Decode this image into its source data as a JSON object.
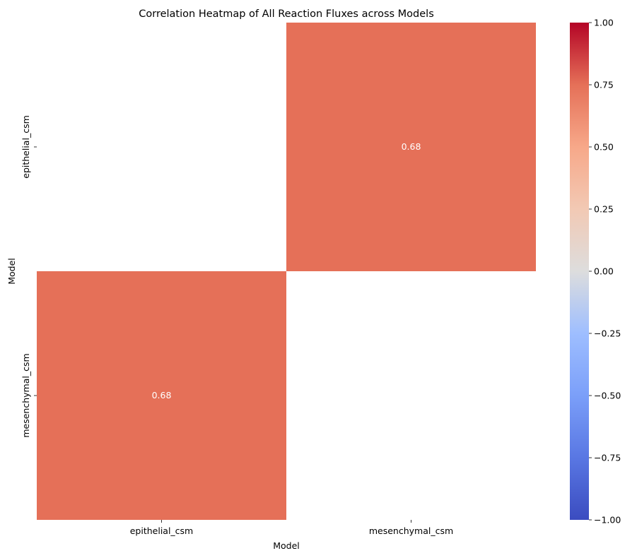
{
  "chart_data": {
    "type": "heatmap",
    "title": "Correlation Heatmap of All Reaction Fluxes across Models",
    "xlabel": "Model",
    "ylabel": "Model",
    "x_categories": [
      "epithelial_csm",
      "mesenchymal_csm"
    ],
    "y_categories": [
      "epithelial_csm",
      "mesenchymal_csm"
    ],
    "matrix": [
      [
        null,
        0.68
      ],
      [
        0.68,
        null
      ]
    ],
    "annotations": [
      [
        "",
        "0.68"
      ],
      [
        "0.68",
        ""
      ]
    ],
    "colormap": "coolwarm",
    "vmin": -1.0,
    "vmax": 1.0,
    "colorbar_ticks": [
      "1.00",
      "0.75",
      "0.50",
      "0.25",
      "0.00",
      "−0.25",
      "−0.50",
      "−0.75",
      "−1.00"
    ],
    "colorbar_tick_values": [
      1.0,
      0.75,
      0.5,
      0.25,
      0.0,
      -0.25,
      -0.5,
      -0.75,
      -1.0
    ],
    "cell_color": "#e57058",
    "masked_color": "#ffffff",
    "annotation_color": "#ffffff"
  }
}
